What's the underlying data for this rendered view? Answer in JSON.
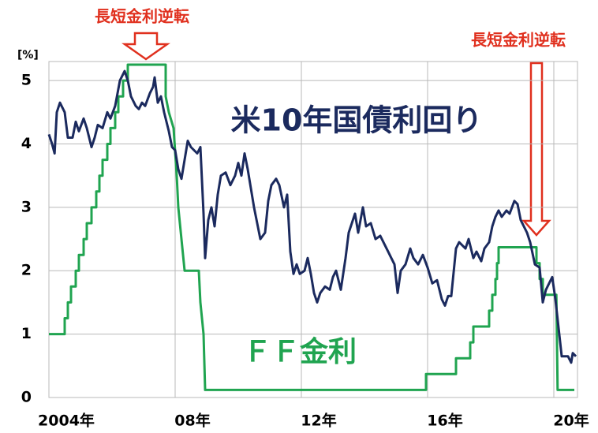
{
  "chart_data": {
    "type": "line",
    "y_label": "[%]",
    "annotations": [
      "長短金利逆転",
      "長短金利逆転"
    ],
    "xlim": [
      2004,
      2020.75
    ],
    "xticks": [
      {
        "value": 2004,
        "label": "2004年"
      },
      {
        "value": 2008,
        "label": "08年"
      },
      {
        "value": 2012,
        "label": "12年"
      },
      {
        "value": 2016,
        "label": "16年"
      },
      {
        "value": 2020,
        "label": "20年"
      }
    ],
    "ylim": [
      0,
      5.3
    ],
    "yticks": [
      0,
      1,
      2,
      3,
      4,
      5
    ],
    "grid": true,
    "series": [
      {
        "name": "米10年国債利回り",
        "color": "#1b2a5e",
        "x": [
          2004.0,
          2004.1,
          2004.18,
          2004.25,
          2004.35,
          2004.5,
          2004.6,
          2004.75,
          2004.85,
          2004.95,
          2005.1,
          2005.2,
          2005.35,
          2005.45,
          2005.55,
          2005.7,
          2005.85,
          2005.95,
          2006.1,
          2006.25,
          2006.4,
          2006.5,
          2006.6,
          2006.75,
          2006.85,
          2006.95,
          2007.05,
          2007.2,
          2007.3,
          2007.35,
          2007.45,
          2007.55,
          2007.65,
          2007.8,
          2007.9,
          2008.0,
          2008.1,
          2008.2,
          2008.3,
          2008.4,
          2008.5,
          2008.6,
          2008.7,
          2008.8,
          2008.9,
          2008.95,
          2009.05,
          2009.15,
          2009.25,
          2009.35,
          2009.45,
          2009.6,
          2009.75,
          2009.9,
          2010.0,
          2010.1,
          2010.2,
          2010.3,
          2010.4,
          2010.5,
          2010.6,
          2010.7,
          2010.85,
          2010.95,
          2011.05,
          2011.2,
          2011.3,
          2011.45,
          2011.55,
          2011.65,
          2011.75,
          2011.85,
          2011.95,
          2012.1,
          2012.2,
          2012.3,
          2012.4,
          2012.5,
          2012.6,
          2012.75,
          2012.9,
          2013.0,
          2013.1,
          2013.25,
          2013.4,
          2013.5,
          2013.6,
          2013.7,
          2013.8,
          2013.95,
          2014.05,
          2014.2,
          2014.35,
          2014.5,
          2014.65,
          2014.75,
          2014.85,
          2014.95,
          2015.05,
          2015.15,
          2015.3,
          2015.45,
          2015.55,
          2015.7,
          2015.85,
          2016.0,
          2016.15,
          2016.3,
          2016.45,
          2016.55,
          2016.65,
          2016.75,
          2016.9,
          2017.0,
          2017.2,
          2017.3,
          2017.45,
          2017.55,
          2017.7,
          2017.8,
          2017.95,
          2018.05,
          2018.15,
          2018.25,
          2018.35,
          2018.5,
          2018.6,
          2018.75,
          2018.85,
          2018.95,
          2019.05,
          2019.15,
          2019.25,
          2019.4,
          2019.55,
          2019.65,
          2019.75,
          2019.85,
          2019.95,
          2020.05,
          2020.15,
          2020.25,
          2020.35,
          2020.45,
          2020.55,
          2020.6,
          2020.7
        ],
        "values": [
          4.15,
          4.0,
          3.85,
          4.5,
          4.65,
          4.5,
          4.1,
          4.1,
          4.35,
          4.2,
          4.4,
          4.25,
          3.95,
          4.1,
          4.3,
          4.25,
          4.5,
          4.4,
          4.6,
          5.0,
          5.15,
          5.0,
          4.75,
          4.6,
          4.55,
          4.65,
          4.6,
          4.8,
          4.9,
          5.05,
          4.65,
          4.75,
          4.5,
          4.2,
          3.95,
          3.9,
          3.6,
          3.45,
          3.75,
          4.05,
          3.95,
          3.9,
          3.85,
          3.95,
          2.9,
          2.2,
          2.8,
          3.0,
          2.7,
          3.2,
          3.5,
          3.55,
          3.35,
          3.5,
          3.7,
          3.5,
          3.85,
          3.6,
          3.3,
          3.0,
          2.75,
          2.5,
          2.6,
          3.1,
          3.35,
          3.45,
          3.35,
          3.0,
          3.2,
          2.3,
          1.95,
          2.1,
          1.95,
          2.0,
          2.2,
          1.95,
          1.65,
          1.5,
          1.65,
          1.75,
          1.7,
          1.9,
          2.0,
          1.7,
          2.2,
          2.6,
          2.75,
          2.9,
          2.6,
          3.0,
          2.7,
          2.75,
          2.5,
          2.55,
          2.4,
          2.3,
          2.2,
          2.1,
          1.65,
          2.0,
          2.1,
          2.35,
          2.2,
          2.1,
          2.25,
          2.05,
          1.8,
          1.85,
          1.55,
          1.45,
          1.6,
          1.6,
          2.35,
          2.45,
          2.35,
          2.5,
          2.2,
          2.3,
          2.15,
          2.35,
          2.45,
          2.7,
          2.85,
          2.95,
          2.85,
          2.95,
          2.9,
          3.1,
          3.05,
          2.8,
          2.7,
          2.6,
          2.45,
          2.1,
          2.05,
          1.5,
          1.7,
          1.8,
          1.9,
          1.55,
          1.1,
          0.65,
          0.65,
          0.65,
          0.55,
          0.7,
          0.65
        ]
      },
      {
        "name": "ＦＦ金利",
        "color": "#20a450",
        "x": [
          2004.0,
          2004.5,
          2004.5,
          2004.6,
          2004.6,
          2004.7,
          2004.7,
          2004.85,
          2004.85,
          2004.95,
          2004.95,
          2005.1,
          2005.1,
          2005.2,
          2005.2,
          2005.35,
          2005.35,
          2005.5,
          2005.5,
          2005.6,
          2005.6,
          2005.7,
          2005.7,
          2005.85,
          2005.85,
          2005.95,
          2005.95,
          2006.1,
          2006.1,
          2006.2,
          2006.2,
          2006.35,
          2006.35,
          2006.5,
          2006.5,
          2007.7,
          2007.7,
          2007.8,
          2007.95,
          2008.05,
          2008.1,
          2008.25,
          2008.3,
          2008.75,
          2008.8,
          2008.9,
          2008.95,
          2015.95,
          2015.95,
          2016.9,
          2016.9,
          2017.35,
          2017.35,
          2017.45,
          2017.45,
          2017.95,
          2017.95,
          2018.05,
          2018.05,
          2018.15,
          2018.15,
          2018.2,
          2018.2,
          2018.25,
          2018.25,
          2019.45,
          2019.45,
          2019.55,
          2019.55,
          2019.65,
          2019.65,
          2020.08,
          2020.12,
          2020.65
        ],
        "values": [
          1.0,
          1.0,
          1.25,
          1.25,
          1.5,
          1.5,
          1.75,
          1.75,
          2.0,
          2.0,
          2.25,
          2.25,
          2.5,
          2.5,
          2.75,
          2.75,
          3.0,
          3.0,
          3.25,
          3.25,
          3.5,
          3.5,
          3.75,
          3.75,
          4.0,
          4.0,
          4.25,
          4.25,
          4.5,
          4.5,
          4.75,
          4.75,
          5.0,
          5.0,
          5.25,
          5.25,
          4.75,
          4.5,
          4.25,
          3.5,
          3.0,
          2.25,
          2.0,
          2.0,
          1.5,
          1.0,
          0.12,
          0.12,
          0.37,
          0.37,
          0.62,
          0.62,
          0.87,
          0.87,
          1.12,
          1.12,
          1.37,
          1.37,
          1.62,
          1.62,
          1.87,
          1.87,
          2.12,
          2.12,
          2.37,
          2.37,
          2.12,
          2.12,
          1.87,
          1.87,
          1.62,
          1.62,
          0.12,
          0.12
        ]
      }
    ]
  }
}
